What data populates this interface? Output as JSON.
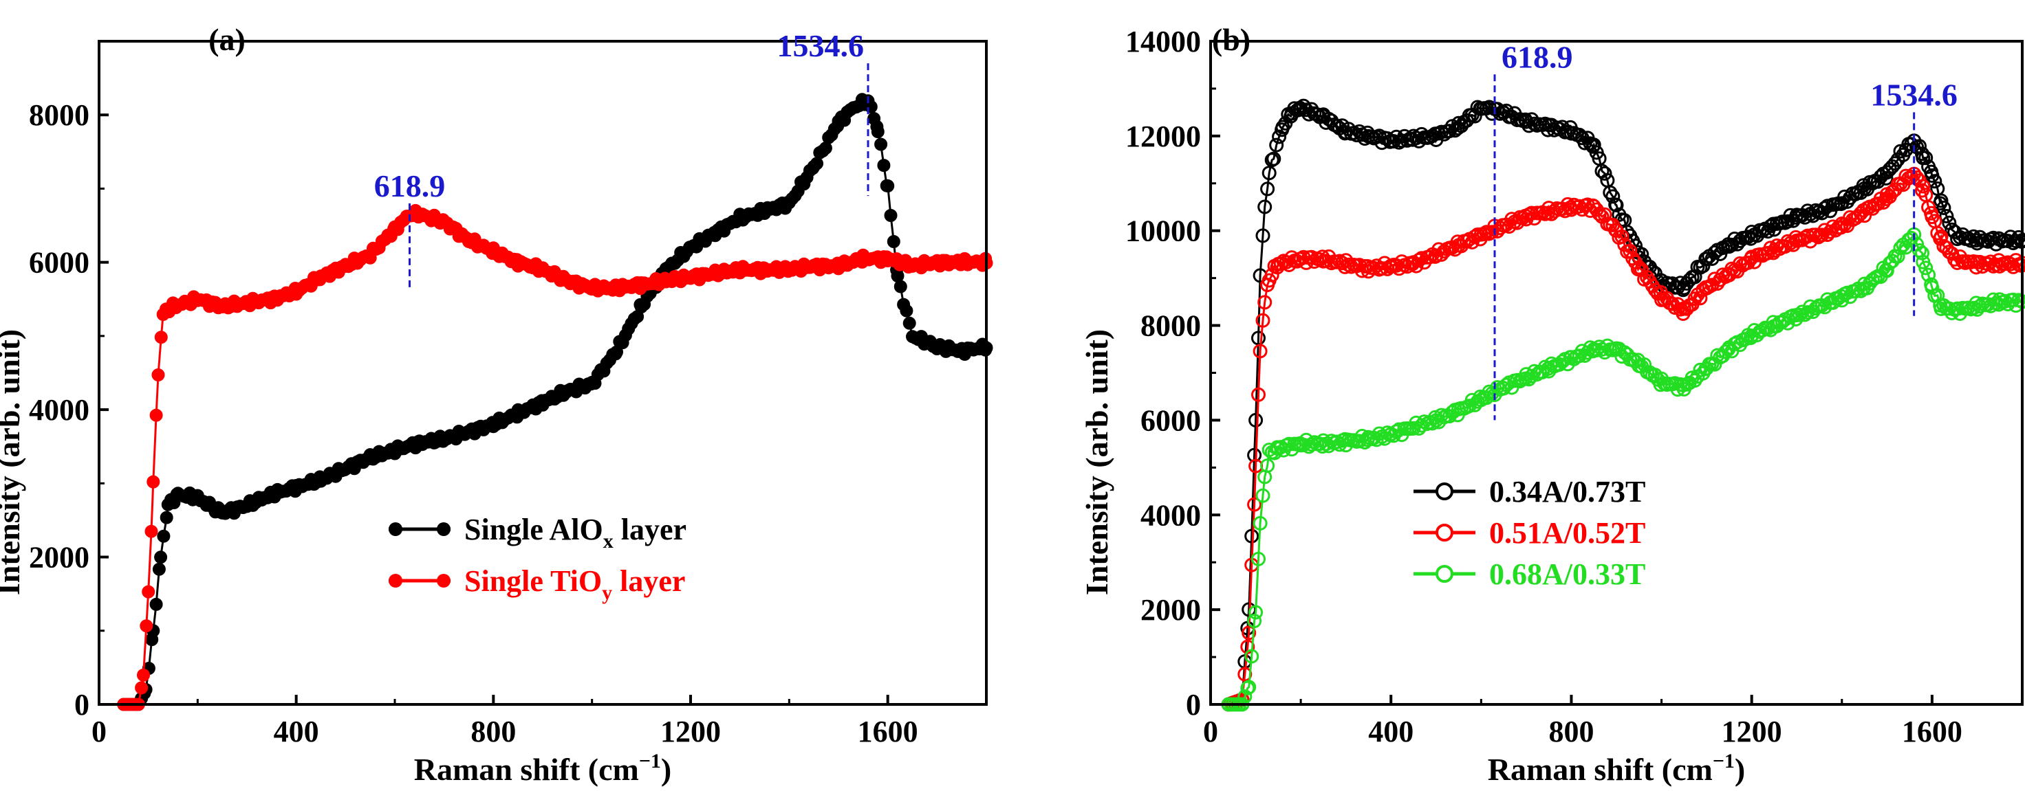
{
  "chart_data": [
    {
      "type": "scatter",
      "panel_label": "(a)",
      "xlabel": "Raman shift (cm",
      "xlabel_sup": "−1",
      "xlabel_close": ")",
      "ylabel": "Intensity (arb. unit)",
      "xlim": [
        0,
        1800
      ],
      "ylim": [
        0,
        9000
      ],
      "xticks": [
        0,
        400,
        800,
        1200,
        1600
      ],
      "yticks": [
        0,
        2000,
        4000,
        6000,
        8000
      ],
      "legend_position": "bottom-right",
      "annotations": [
        {
          "text": "618.9",
          "x": 630,
          "y_top": 6800,
          "y_bottom": 5650,
          "color": "#1a1acc"
        },
        {
          "text": "1534.6",
          "x": 1560,
          "y_top": 8700,
          "y_bottom": 6900,
          "color": "#1a1acc"
        }
      ],
      "series": [
        {
          "name": "Single AlO",
          "name_sub": "x",
          "name_tail": " layer",
          "color": "#000000",
          "marker": "filled",
          "x": [
            50,
            80,
            95,
            110,
            125,
            140,
            160,
            200,
            250,
            300,
            350,
            400,
            450,
            500,
            550,
            600,
            650,
            700,
            750,
            800,
            850,
            900,
            950,
            1000,
            1050,
            1100,
            1150,
            1200,
            1250,
            1300,
            1350,
            1400,
            1450,
            1500,
            1530,
            1560,
            1580,
            1600,
            1620,
            1650,
            1700,
            1750,
            1800
          ],
          "y": [
            0,
            0,
            200,
            1000,
            2000,
            2700,
            2850,
            2800,
            2600,
            2700,
            2850,
            2950,
            3050,
            3200,
            3350,
            3450,
            3550,
            3600,
            3700,
            3800,
            3950,
            4100,
            4250,
            4350,
            4800,
            5400,
            5900,
            6200,
            6400,
            6600,
            6700,
            6800,
            7300,
            7900,
            8100,
            8200,
            7800,
            7000,
            5800,
            5000,
            4850,
            4800,
            4850
          ]
        },
        {
          "name": "Single TiO",
          "name_sub": "y",
          "name_tail": " layer",
          "color": "#ff0000",
          "marker": "filled",
          "x": [
            50,
            80,
            90,
            100,
            110,
            120,
            130,
            150,
            200,
            250,
            300,
            350,
            400,
            450,
            500,
            550,
            600,
            630,
            650,
            700,
            750,
            800,
            850,
            900,
            950,
            1000,
            1050,
            1100,
            1150,
            1200,
            1250,
            1300,
            1350,
            1400,
            1450,
            1500,
            1550,
            1600,
            1650,
            1700,
            1750,
            1800
          ],
          "y": [
            0,
            0,
            400,
            1500,
            3000,
            4500,
            5300,
            5400,
            5500,
            5400,
            5450,
            5500,
            5600,
            5800,
            5950,
            6100,
            6450,
            6650,
            6650,
            6550,
            6300,
            6150,
            6000,
            5900,
            5750,
            5650,
            5650,
            5700,
            5750,
            5800,
            5850,
            5900,
            5900,
            5900,
            5950,
            5950,
            6050,
            6050,
            5950,
            6000,
            6000,
            6000
          ]
        }
      ]
    },
    {
      "type": "scatter",
      "panel_label": "(b)",
      "xlabel": "Raman shift (cm",
      "xlabel_sup": "−1",
      "xlabel_close": ")",
      "ylabel": "Intensity (arb. unit)",
      "xlim": [
        0,
        1800
      ],
      "ylim": [
        0,
        14000
      ],
      "xticks": [
        0,
        400,
        800,
        1200,
        1600
      ],
      "yticks": [
        0,
        2000,
        4000,
        6000,
        8000,
        10000,
        12000,
        14000
      ],
      "legend_position": "bottom-right",
      "annotations": [
        {
          "text": "618.9",
          "x": 630,
          "y_top": 13300,
          "y_bottom": 6000,
          "color": "#1a1acc"
        },
        {
          "text": "1534.6",
          "x": 1560,
          "y_top": 12500,
          "y_bottom": 8200,
          "color": "#1a1acc"
        }
      ],
      "series": [
        {
          "name": "0.34A/0.73T",
          "color": "#000000",
          "marker": "open",
          "x": [
            40,
            70,
            85,
            100,
            110,
            120,
            130,
            140,
            160,
            180,
            200,
            250,
            300,
            350,
            400,
            450,
            500,
            550,
            600,
            650,
            700,
            750,
            800,
            850,
            900,
            950,
            1000,
            1050,
            1100,
            1150,
            1200,
            1250,
            1300,
            1350,
            1400,
            1450,
            1500,
            1530,
            1560,
            1580,
            1600,
            1620,
            1650,
            1700,
            1750,
            1800
          ],
          "y": [
            0,
            100,
            2000,
            6000,
            9000,
            10500,
            11200,
            11600,
            12200,
            12500,
            12600,
            12400,
            12100,
            12000,
            11900,
            11950,
            12000,
            12200,
            12600,
            12500,
            12300,
            12200,
            12100,
            11800,
            10500,
            9500,
            8900,
            8800,
            9400,
            9700,
            9900,
            10100,
            10300,
            10400,
            10600,
            10900,
            11200,
            11600,
            11900,
            11600,
            11200,
            10600,
            9900,
            9800,
            9800,
            9800
          ]
        },
        {
          "name": "0.51A/0.52T",
          "color": "#ff0000",
          "marker": "open",
          "x": [
            40,
            70,
            85,
            100,
            110,
            120,
            130,
            150,
            200,
            250,
            300,
            350,
            400,
            450,
            500,
            550,
            600,
            650,
            700,
            750,
            800,
            850,
            900,
            950,
            1000,
            1050,
            1100,
            1150,
            1200,
            1250,
            1300,
            1350,
            1400,
            1450,
            1500,
            1530,
            1560,
            1580,
            1600,
            1620,
            1650,
            1700,
            1750,
            1800
          ],
          "y": [
            0,
            100,
            1500,
            5000,
            7500,
            8500,
            9000,
            9300,
            9400,
            9400,
            9300,
            9200,
            9250,
            9300,
            9500,
            9700,
            9900,
            10100,
            10300,
            10400,
            10500,
            10500,
            10000,
            9200,
            8600,
            8300,
            8800,
            9100,
            9400,
            9600,
            9800,
            9900,
            10100,
            10400,
            10700,
            11000,
            11200,
            10900,
            10300,
            9800,
            9400,
            9300,
            9300,
            9300
          ]
        },
        {
          "name": "0.68A/0.33T",
          "color": "#22dd22",
          "marker": "open",
          "x": [
            40,
            70,
            85,
            100,
            110,
            120,
            130,
            150,
            200,
            250,
            300,
            350,
            400,
            450,
            500,
            550,
            600,
            650,
            700,
            750,
            800,
            850,
            900,
            950,
            1000,
            1050,
            1100,
            1150,
            1200,
            1250,
            1300,
            1350,
            1400,
            1450,
            1500,
            1530,
            1560,
            1580,
            1600,
            1620,
            1650,
            1700,
            1750,
            1800
          ],
          "y": [
            0,
            0,
            400,
            2000,
            3800,
            4800,
            5300,
            5400,
            5500,
            5500,
            5550,
            5600,
            5700,
            5850,
            6000,
            6200,
            6450,
            6700,
            6900,
            7100,
            7300,
            7500,
            7500,
            7200,
            6800,
            6700,
            7100,
            7500,
            7800,
            8000,
            8200,
            8400,
            8600,
            8800,
            9200,
            9600,
            9900,
            9400,
            8800,
            8400,
            8300,
            8400,
            8500,
            8500
          ]
        }
      ]
    }
  ]
}
